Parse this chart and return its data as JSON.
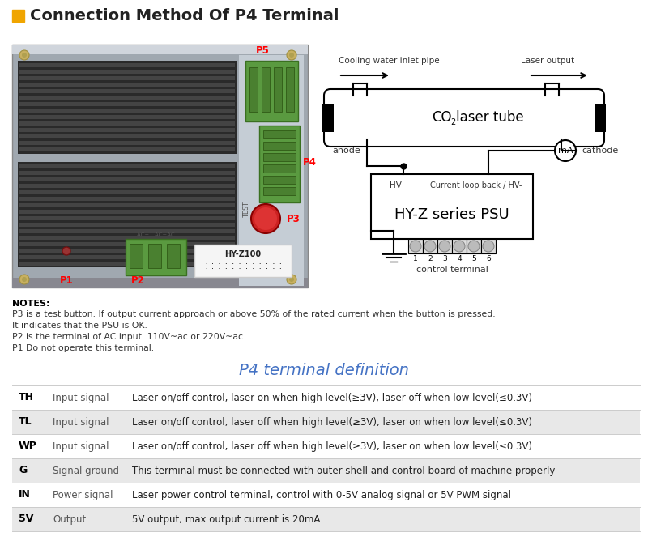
{
  "title": "Connection Method Of P4 Terminal",
  "title_color": "#222222",
  "title_square_color": "#F0A500",
  "bg_color": "#ffffff",
  "notes_header": "NOTES:",
  "notes": [
    "P3 is a test button. If output current approach or above 50% of the rated current when the button is pressed.",
    "It indicates that the PSU is OK.",
    "P2 is the terminal of AC input. 110V~ac or 220V~ac",
    "P1 Do not operate this terminal."
  ],
  "table_title": "P4 terminal definition",
  "table_title_color": "#4472C4",
  "table_rows": [
    {
      "pin": "TH",
      "type": "Input signal",
      "desc": "Laser on/off control, laser on when high level(≥3V), laser off when low level(≤0.3V)",
      "bg": "#ffffff"
    },
    {
      "pin": "TL",
      "type": "Input signal",
      "desc": "Laser on/off control, laser off when high level(≥3V), laser on when low level(≤0.3V)",
      "bg": "#e8e8e8"
    },
    {
      "pin": "WP",
      "type": "Input signal",
      "desc": "Laser on/off control, laser off when high level(≥3V), laser on when low level(≤0.3V)",
      "bg": "#ffffff"
    },
    {
      "pin": "G",
      "type": "Signal ground",
      "desc": "This terminal must be connected with outer shell and control board of machine properly",
      "bg": "#e8e8e8"
    },
    {
      "pin": "IN",
      "type": "Power signal",
      "desc": "Laser power control terminal, control with 0-5V analog signal or 5V PWM signal",
      "bg": "#ffffff"
    },
    {
      "pin": "5V",
      "type": "Output",
      "desc": "5V output, max output current is 20mA",
      "bg": "#e8e8e8"
    }
  ],
  "diagram": {
    "tube_label_co": "CO",
    "tube_label_2": "2",
    "tube_label_rest": "laser tube",
    "psu_label": "HY-Z series PSU",
    "hv_label": "HV",
    "current_label": "Current loop back / HV-",
    "anode_label": "anode",
    "cathode_label": "cathode",
    "ma_label": "mA",
    "water_in_label": "Cooling water inlet pipe",
    "laser_out_label": "Laser output",
    "control_label": "control terminal"
  },
  "photo": {
    "bg_color": "#b8bfc8",
    "metal_color": "#a0a8b0",
    "stripe_dark": "#555555",
    "stripe_light": "#999999",
    "green_color": "#5a9a40",
    "red_button": "#cc2222",
    "label_bg": "#f0f0f0"
  }
}
